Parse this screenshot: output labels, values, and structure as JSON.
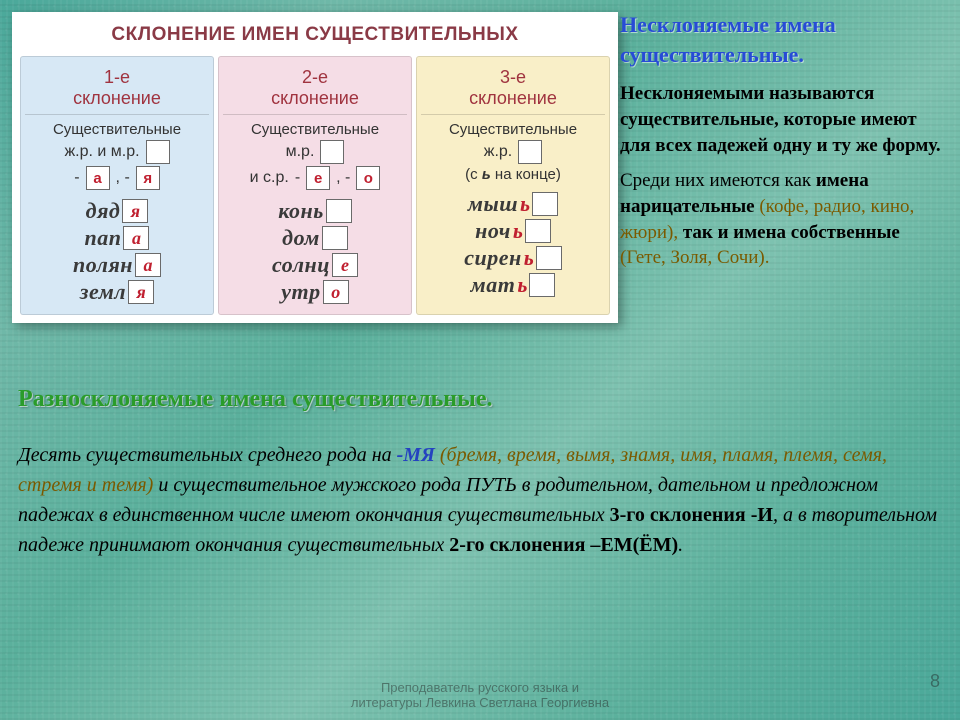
{
  "table": {
    "title": "СКЛОНЕНИЕ ИМЕН СУЩЕСТВИТЕЛЬНЫХ",
    "columns": [
      {
        "bg": "#d7e8f5",
        "head1": "1-е",
        "head2": "склонение",
        "sub": "Существительные",
        "gender": "ж.р. и м.р.",
        "endings": [
          "а",
          "я"
        ],
        "sep": "-",
        "note": "",
        "examples": [
          {
            "root": "дяд",
            "end": "я"
          },
          {
            "root": "пап",
            "end": "а"
          },
          {
            "root": "полян",
            "end": "а"
          },
          {
            "root": "земл",
            "end": "я"
          }
        ]
      },
      {
        "bg": "#f5dde6",
        "head1": "2-е",
        "head2": "склонение",
        "sub": "Существительные",
        "gender": "м.р.",
        "gender2": "и с.р.",
        "endings": [
          "е",
          "о"
        ],
        "sep": "-",
        "note": "",
        "examples": [
          {
            "root": "конь",
            "end": ""
          },
          {
            "root": "дом",
            "end": ""
          },
          {
            "root": "солнц",
            "end": "е"
          },
          {
            "root": "утр",
            "end": "о"
          }
        ]
      },
      {
        "bg": "#f9efc8",
        "head1": "3-е",
        "head2": "склонение",
        "sub": "Существительные",
        "gender": "ж.р.",
        "note_pre": "(с ",
        "note_b": "ь",
        "note_post": " на конце)",
        "examples": [
          {
            "root": "мыш",
            "soft": "ь",
            "end": ""
          },
          {
            "root": "ноч",
            "soft": "ь",
            "end": ""
          },
          {
            "root": "сирен",
            "soft": "ь",
            "end": ""
          },
          {
            "root": "мат",
            "soft": "ь",
            "end": ""
          }
        ]
      }
    ]
  },
  "right": {
    "title": "Несклоняемые имена существительные.",
    "p1a": "Несклоняемыми называются существительные, которые имеют для всех падежей одну и ту же форму.",
    "p2a": "Среди них имеются как ",
    "p2b": "имена нарицательные",
    "p2c": " (кофе, радио, кино, жюри), ",
    "p2d": "так и имена собственные",
    "p2e": " (Гете, Золя, Сочи)."
  },
  "heading2": "Разносклоняемые имена существительные.",
  "body": {
    "t1": "Десять существительных ",
    "t2": "среднего рода на ",
    "mya": "-МЯ",
    "list": " (бремя, время, вымя, знамя, имя, пламя, племя, семя, стремя и темя)",
    "t3": " и существительное мужского рода ПУТЬ в родительном, дательном и предложном падежах в единственном числе имеют окончания существительных ",
    "b1": "3-го склонения -И",
    "t4": ", а в творительном падеже принимают окончания существительных ",
    "b2": "2-го склонения –ЕМ(ЁМ)",
    "t5": "."
  },
  "footer": {
    "line1": "Преподаватель русского языка и",
    "line2": "литературы Левкина Светлана Георгиевна"
  },
  "pagenum": "8"
}
